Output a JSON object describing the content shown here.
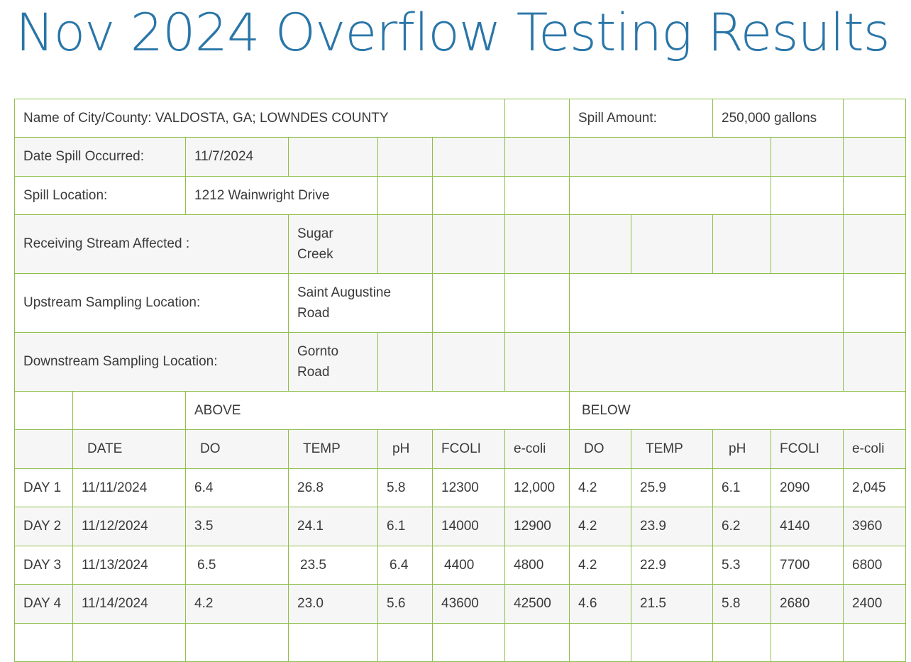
{
  "title": "Nov 2024 Overflow Testing Results",
  "info": {
    "city_label": "Name of City/County: VALDOSTA, GA; LOWNDES COUNTY",
    "spill_amount_label": "Spill Amount:",
    "spill_amount_value": "250,000 gallons",
    "date_label": "Date Spill Occurred:",
    "date_value": "11/7/2024",
    "location_label": "Spill Location:",
    "location_value": "1212 Wainwright Drive",
    "stream_label": "Receiving Stream Affected :",
    "stream_value": "Sugar Creek",
    "upstream_label": "Upstream Sampling Location:",
    "upstream_value": "Saint Augustine Road",
    "downstream_label": "Downstream Sampling Location:",
    "downstream_value": "Gornto Road"
  },
  "groups": {
    "above": "ABOVE",
    "below": "BELOW"
  },
  "columns": [
    "",
    "DATE",
    "DO",
    "TEMP",
    "pH",
    "FCOLI",
    "e-coli",
    "DO",
    "TEMP",
    "pH",
    "FCOLI",
    "e-coli"
  ],
  "rows": [
    [
      "DAY 1",
      "11/11/2024",
      "6.4",
      "26.8",
      "5.8",
      "12300",
      "12,000",
      "4.2",
      "25.9",
      "6.1",
      "2090",
      "2,045"
    ],
    [
      "DAY 2",
      "11/12/2024",
      "3.5",
      "24.1",
      "6.1",
      "14000",
      "12900",
      "4.2",
      "23.9",
      "6.2",
      "4140",
      "3960"
    ],
    [
      "DAY 3",
      "11/13/2024",
      "6.5",
      "23.5",
      "6.4",
      "4400",
      "4800",
      "4.2",
      "22.9",
      "5.3",
      "7700",
      "6800"
    ],
    [
      "DAY 4",
      "11/14/2024",
      "4.2",
      "23.0",
      "5.6",
      "43600",
      "42500",
      "4.6",
      "21.5",
      "5.8",
      "2680",
      "2400"
    ]
  ]
}
